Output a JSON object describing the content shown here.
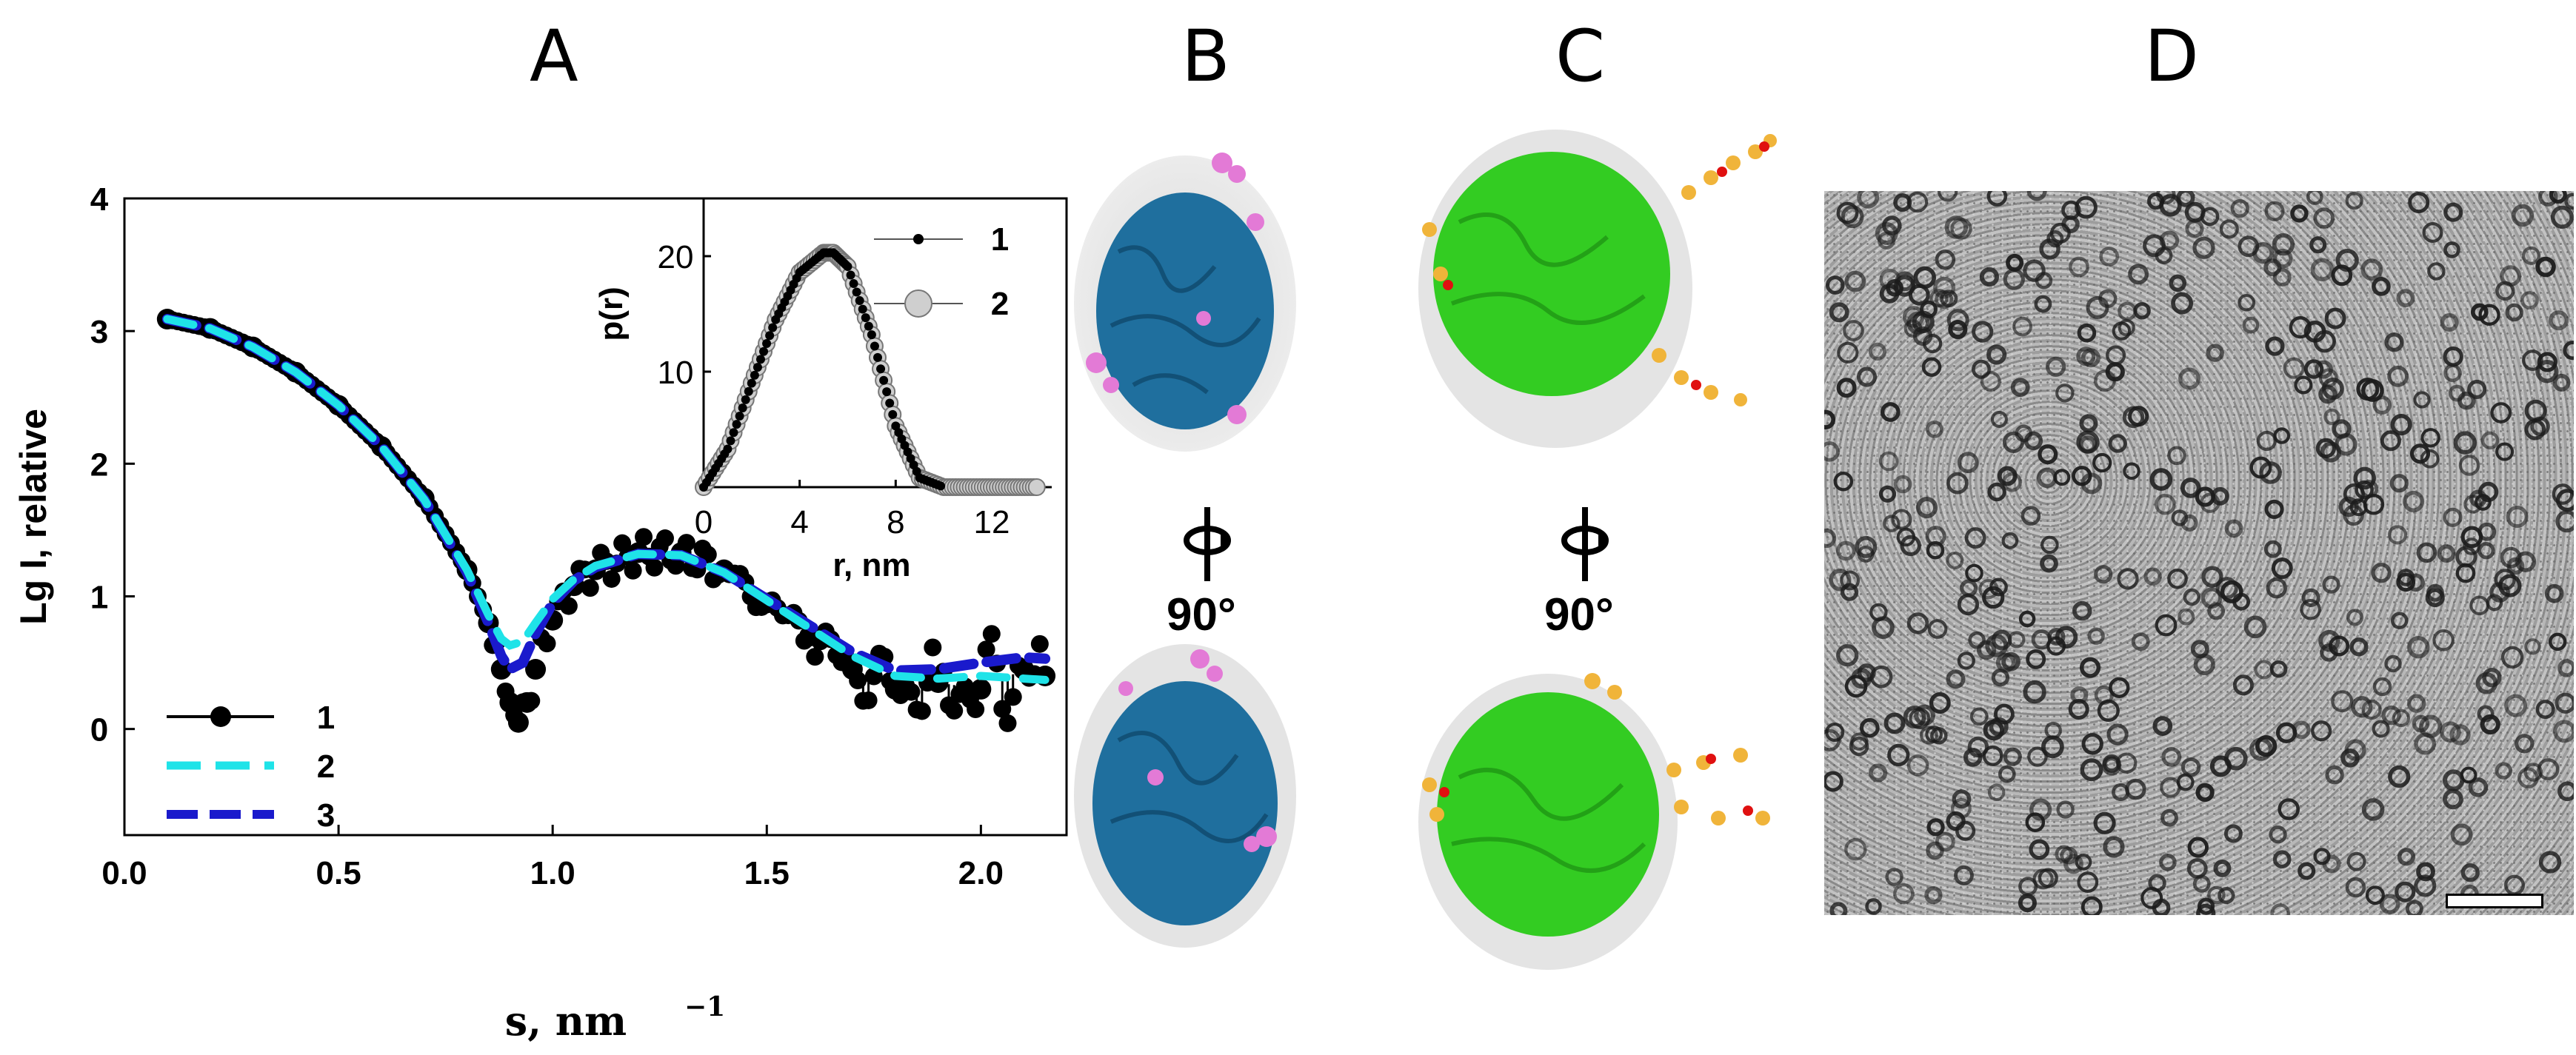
{
  "panels": {
    "a": "A",
    "b": "B",
    "c": "C",
    "d": "D"
  },
  "rotation": {
    "b": "90°",
    "c": "90°"
  },
  "colors": {
    "series1": "#000000",
    "series2": "#1fe3e8",
    "series3": "#1a1acc",
    "protein_b": "#1f6f9e",
    "ligand_b": "#e37ad6",
    "protein_c": "#33cc22",
    "ligand_c": "#f0b43a",
    "oxygen": "#e01010",
    "shell": "#cfcfcf"
  },
  "chart_data": [
    {
      "type": "line",
      "title": "",
      "xlabel": "s, nm",
      "xlabel_sup": "−1",
      "ylabel": "Lg I, relative",
      "xlim": [
        0,
        2.2
      ],
      "ylim": [
        -0.8,
        4
      ],
      "xticks": [
        "0.0",
        "0.5",
        "1.0",
        "1.5",
        "2.0"
      ],
      "xtick_values": [
        0,
        0.5,
        1,
        1.5,
        2
      ],
      "yticks": [
        "0",
        "1",
        "2",
        "3",
        "4"
      ],
      "ytick_values": [
        0,
        1,
        2,
        3,
        4
      ],
      "legend": [
        "1",
        "2",
        "3"
      ],
      "series": [
        {
          "name": "1",
          "style": "experimental points",
          "x": [
            0.1,
            0.2,
            0.3,
            0.4,
            0.5,
            0.6,
            0.7,
            0.8,
            0.85,
            0.88,
            0.9,
            0.92,
            0.94,
            0.96,
            1.0,
            1.05,
            1.1,
            1.2,
            1.3,
            1.4,
            1.5,
            1.6,
            1.7,
            1.8,
            1.9,
            2.0,
            2.1,
            2.15
          ],
          "y": [
            3.09,
            3.02,
            2.88,
            2.69,
            2.44,
            2.13,
            1.74,
            1.2,
            0.8,
            0.45,
            0.2,
            0.05,
            0.2,
            0.45,
            0.82,
            1.08,
            1.2,
            1.33,
            1.33,
            1.2,
            0.95,
            0.7,
            0.45,
            0.3,
            0.35,
            0.3,
            0.45,
            0.4
          ]
        },
        {
          "name": "2",
          "style": "cyan dashed fit",
          "x": [
            0.1,
            0.2,
            0.3,
            0.4,
            0.5,
            0.6,
            0.7,
            0.8,
            0.85,
            0.88,
            0.9,
            0.93,
            0.96,
            1.0,
            1.05,
            1.1,
            1.2,
            1.3,
            1.4,
            1.5,
            1.6,
            1.7,
            1.8,
            1.9,
            2.0,
            2.1,
            2.15
          ],
          "y": [
            3.09,
            3.02,
            2.88,
            2.69,
            2.44,
            2.13,
            1.73,
            1.2,
            0.86,
            0.68,
            0.63,
            0.66,
            0.8,
            0.98,
            1.13,
            1.23,
            1.32,
            1.31,
            1.18,
            0.97,
            0.76,
            0.55,
            0.4,
            0.38,
            0.4,
            0.38,
            0.37
          ]
        },
        {
          "name": "3",
          "style": "blue dashed fit",
          "x": [
            0.1,
            0.2,
            0.3,
            0.4,
            0.5,
            0.6,
            0.7,
            0.8,
            0.85,
            0.88,
            0.9,
            0.93,
            0.96,
            1.0,
            1.05,
            1.1,
            1.2,
            1.3,
            1.4,
            1.5,
            1.6,
            1.7,
            1.8,
            1.9,
            2.0,
            2.1,
            2.15
          ],
          "y": [
            3.09,
            3.02,
            2.88,
            2.69,
            2.44,
            2.13,
            1.73,
            1.18,
            0.8,
            0.55,
            0.45,
            0.5,
            0.72,
            0.95,
            1.12,
            1.22,
            1.32,
            1.31,
            1.18,
            0.98,
            0.78,
            0.58,
            0.44,
            0.45,
            0.5,
            0.54,
            0.53
          ]
        }
      ]
    },
    {
      "type": "line",
      "title": "",
      "xlabel": "r, nm",
      "ylabel": "p(r)",
      "xlim": [
        0,
        14.5
      ],
      "ylim": [
        0,
        25
      ],
      "xticks": [
        "0",
        "4",
        "8",
        "12"
      ],
      "xtick_values": [
        0,
        4,
        8,
        12
      ],
      "yticks": [
        "10",
        "20"
      ],
      "ytick_values": [
        10,
        20
      ],
      "legend": [
        "1",
        "2"
      ],
      "series": [
        {
          "name": "1",
          "style": "small black points",
          "x": [
            0,
            1,
            2,
            3,
            4,
            5,
            5.4,
            6,
            7,
            8,
            9,
            10
          ],
          "y": [
            0,
            3.3,
            9,
            14.5,
            18.6,
            20.3,
            20.3,
            19.1,
            13.2,
            5.3,
            0.8,
            0
          ]
        },
        {
          "name": "2",
          "style": "large grey circles",
          "x": [
            0,
            1,
            2,
            3,
            4,
            5,
            5.4,
            6,
            7,
            8,
            9,
            10,
            11,
            12,
            13,
            14
          ],
          "y": [
            0,
            3.3,
            9,
            14.5,
            18.6,
            20.3,
            20.3,
            19.1,
            13.2,
            5.3,
            0.8,
            0,
            0,
            0,
            0,
            0
          ]
        }
      ]
    }
  ]
}
